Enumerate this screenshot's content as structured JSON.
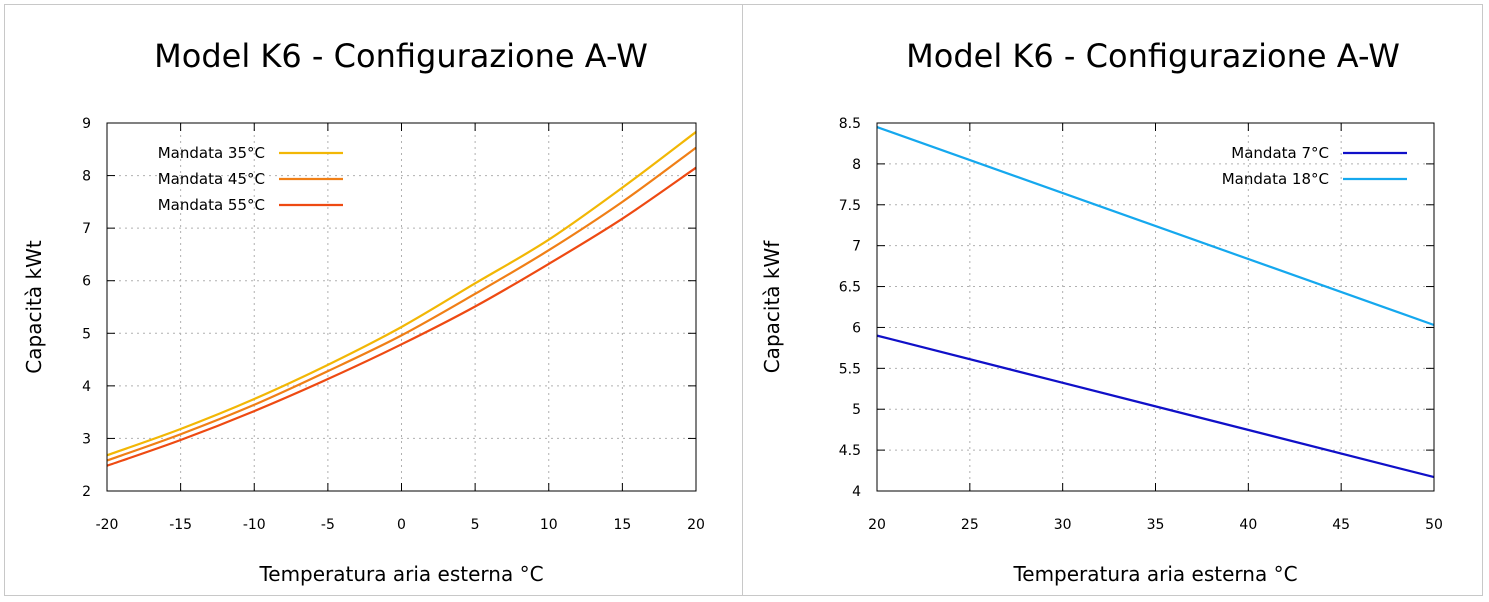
{
  "chart_data": [
    {
      "type": "line",
      "title": "Model K6 - Configurazione A-W",
      "xlabel": "Temperatura aria esterna °C",
      "ylabel": "Capacità kWt",
      "xlim": [
        -20,
        20
      ],
      "ylim": [
        2,
        9
      ],
      "xticks": [
        -20,
        -15,
        -10,
        -5,
        0,
        5,
        10,
        15,
        20
      ],
      "yticks": [
        2,
        3,
        4,
        5,
        6,
        7,
        8,
        9
      ],
      "grid": true,
      "legend_position": "top-left",
      "series": [
        {
          "name": "Mandata 35°C",
          "color": "#f2b705",
          "x": [
            -20,
            -15,
            -10,
            -5,
            0,
            5,
            10,
            15,
            20
          ],
          "y": [
            2.68,
            3.18,
            3.75,
            4.4,
            5.12,
            5.95,
            6.78,
            7.77,
            8.83
          ]
        },
        {
          "name": "Mandata 45°C",
          "color": "#f07f16",
          "x": [
            -20,
            -15,
            -10,
            -5,
            0,
            5,
            10,
            15,
            20
          ],
          "y": [
            2.58,
            3.08,
            3.64,
            4.28,
            4.96,
            5.75,
            6.58,
            7.5,
            8.53
          ]
        },
        {
          "name": "Mandata 55°C",
          "color": "#ee4a12",
          "x": [
            -20,
            -15,
            -10,
            -5,
            0,
            5,
            10,
            15,
            20
          ],
          "y": [
            2.48,
            2.97,
            3.52,
            4.13,
            4.79,
            5.51,
            6.32,
            7.18,
            8.15
          ]
        }
      ]
    },
    {
      "type": "line",
      "title": "Model K6 - Configurazione A-W",
      "xlabel": "Temperatura aria esterna °C",
      "ylabel": "Capacità kWf",
      "xlim": [
        20,
        50
      ],
      "ylim": [
        4,
        8.5
      ],
      "xticks": [
        20,
        25,
        30,
        35,
        40,
        45,
        50
      ],
      "yticks": [
        4,
        4.5,
        5,
        5.5,
        6,
        6.5,
        7,
        7.5,
        8,
        8.5
      ],
      "grid": true,
      "legend_position": "top-right",
      "series": [
        {
          "name": "Mandata 7°C",
          "color": "#1010c8",
          "x": [
            20,
            50
          ],
          "y": [
            5.9,
            4.17
          ]
        },
        {
          "name": "Mandata 18°C",
          "color": "#15a8ee",
          "x": [
            20,
            50
          ],
          "y": [
            8.45,
            6.03
          ]
        }
      ]
    }
  ]
}
